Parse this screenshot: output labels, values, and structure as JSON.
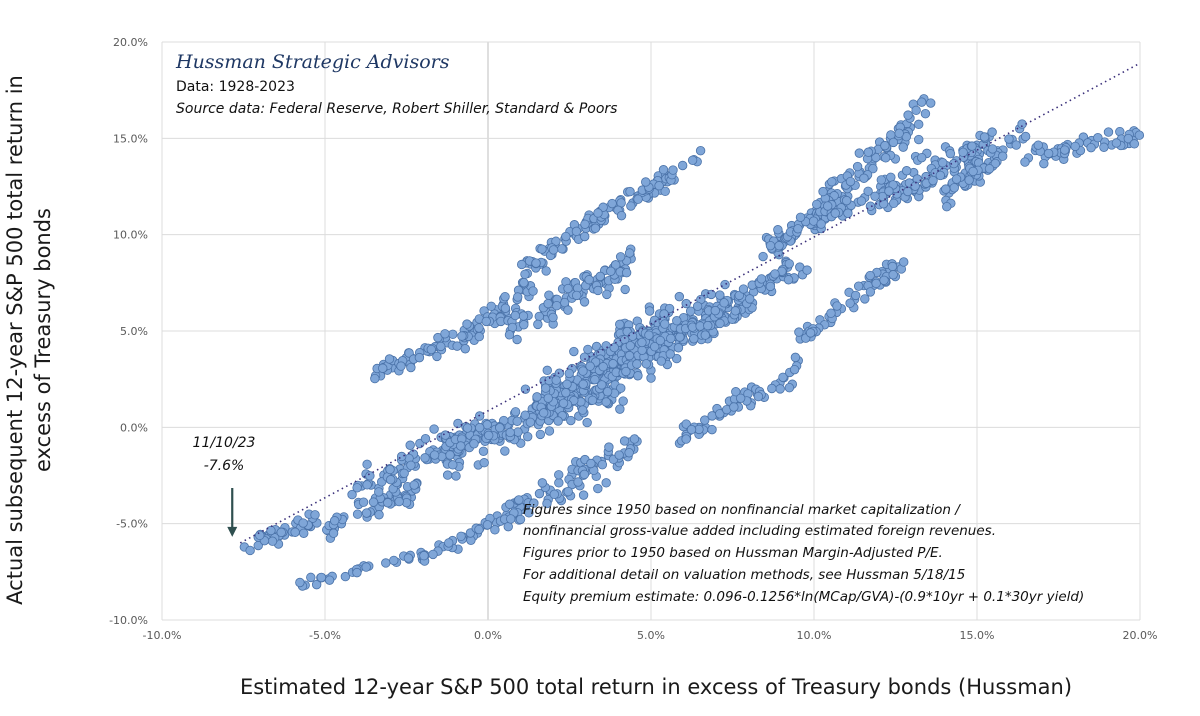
{
  "chart_data": {
    "type": "scatter",
    "title": "",
    "brand": "Hussman Strategic Advisors",
    "subtitle_lines": [
      "Data: 1928-2023",
      "Source data: Federal Reserve, Robert Shiller, Standard & Poors"
    ],
    "xlabel": "Estimated 12-year S&P 500 total return in excess of Treasury bonds (Hussman)",
    "ylabel_lines": [
      "Actual subsequent  12-year S&P 500 total return in",
      "excess of Treasury bonds"
    ],
    "xlim": [
      -10,
      20
    ],
    "ylim": [
      -10,
      20
    ],
    "x_ticks": [
      -10,
      -5,
      0,
      5,
      10,
      15,
      20
    ],
    "y_ticks": [
      -10,
      -5,
      0,
      5,
      10,
      15,
      20
    ],
    "x_tick_labels": [
      "-10.0%",
      "-5.0%",
      "0.0%",
      "5.0%",
      "10.0%",
      "15.0%",
      "20.0%"
    ],
    "y_tick_labels": [
      "-10.0%",
      "-5.0%",
      "0.0%",
      "5.0%",
      "10.0%",
      "15.0%",
      "20.0%"
    ],
    "grid": true,
    "point_color": "#7fa6d8",
    "point_edge_color": "#4a72a8",
    "trend_color": "#3a2f7a",
    "trend_line": {
      "x": [
        -7.6,
        20.0
      ],
      "y": [
        -6.0,
        18.9
      ]
    },
    "current_point": {
      "x": -7.6,
      "y": -6.0,
      "date_label": "11/10/23",
      "value_label": "-7.6%"
    },
    "annotation_lines": [
      "Figures since 1950 based on nonfinancial market capitalization /",
      "nonfinancial gross-value added including estimated foreign revenues.",
      "Figures prior to 1950 based on Hussman Margin-Adjusted P/E.",
      "For additional detail on valuation methods, see Hussman 5/18/15",
      "Equity premium estimate: 0.096-0.1256*ln(MCap/GVA)-(0.9*10yr  + 0.1*30yr yield)"
    ],
    "clusters": [
      {
        "x0": -5.8,
        "y0": -8.2,
        "x1": -2.0,
        "y1": -6.6,
        "n": 30,
        "s": 0.25
      },
      {
        "x0": -2.0,
        "y0": -6.8,
        "x1": 1.0,
        "y1": -4.2,
        "n": 40,
        "s": 0.35
      },
      {
        "x0": -7.5,
        "y0": -6.2,
        "x1": -5.0,
        "y1": -4.6,
        "n": 40,
        "s": 0.4
      },
      {
        "x0": -5.0,
        "y0": -5.2,
        "x1": -2.0,
        "y1": -3.0,
        "n": 55,
        "s": 0.6
      },
      {
        "x0": -4.0,
        "y0": -3.0,
        "x1": 0.0,
        "y1": 0.0,
        "n": 80,
        "s": 0.75
      },
      {
        "x0": -3.5,
        "y0": 2.8,
        "x1": -1.0,
        "y1": 4.6,
        "n": 50,
        "s": 0.4
      },
      {
        "x0": -1.0,
        "y0": 4.2,
        "x1": 1.5,
        "y1": 7.5,
        "n": 55,
        "s": 0.55
      },
      {
        "x0": 1.0,
        "y0": 8.0,
        "x1": 3.5,
        "y1": 11.0,
        "n": 55,
        "s": 0.55
      },
      {
        "x0": 3.0,
        "y0": 10.5,
        "x1": 5.8,
        "y1": 13.2,
        "n": 55,
        "s": 0.45
      },
      {
        "x0": 5.5,
        "y0": 13.0,
        "x1": 6.8,
        "y1": 14.2,
        "n": 12,
        "s": 0.3
      },
      {
        "x0": -1.5,
        "y0": -1.5,
        "x1": 4.0,
        "y1": 2.5,
        "n": 220,
        "s": 1.1
      },
      {
        "x0": 1.5,
        "y0": 1.0,
        "x1": 5.5,
        "y1": 5.5,
        "n": 240,
        "s": 1.1
      },
      {
        "x0": 4.0,
        "y0": 3.0,
        "x1": 7.5,
        "y1": 6.5,
        "n": 170,
        "s": 1.0
      },
      {
        "x0": 0.5,
        "y0": 5.0,
        "x1": 4.5,
        "y1": 8.5,
        "n": 100,
        "s": 0.9
      },
      {
        "x0": 0.5,
        "y0": -4.5,
        "x1": 4.5,
        "y1": -1.0,
        "n": 80,
        "s": 0.8
      },
      {
        "x0": 5.5,
        "y0": -1.0,
        "x1": 9.5,
        "y1": 3.0,
        "n": 60,
        "s": 0.6
      },
      {
        "x0": 6.5,
        "y0": 5.0,
        "x1": 9.5,
        "y1": 8.5,
        "n": 80,
        "s": 0.8
      },
      {
        "x0": 9.5,
        "y0": 4.5,
        "x1": 13.0,
        "y1": 9.0,
        "n": 55,
        "s": 0.5
      },
      {
        "x0": 8.5,
        "y0": 9.0,
        "x1": 11.0,
        "y1": 12.0,
        "n": 70,
        "s": 0.6
      },
      {
        "x0": 10.0,
        "y0": 11.0,
        "x1": 13.5,
        "y1": 16.5,
        "n": 90,
        "s": 0.8
      },
      {
        "x0": 12.0,
        "y0": 12.0,
        "x1": 15.5,
        "y1": 15.0,
        "n": 90,
        "s": 0.8
      },
      {
        "x0": 14.0,
        "y0": 12.0,
        "x1": 16.5,
        "y1": 15.5,
        "n": 60,
        "s": 0.6
      },
      {
        "x0": 16.5,
        "y0": 14.0,
        "x1": 20.0,
        "y1": 15.2,
        "n": 55,
        "s": 0.45
      },
      {
        "x0": 9.5,
        "y0": 10.5,
        "x1": 14.0,
        "y1": 13.0,
        "n": 50,
        "s": 0.5
      }
    ]
  }
}
